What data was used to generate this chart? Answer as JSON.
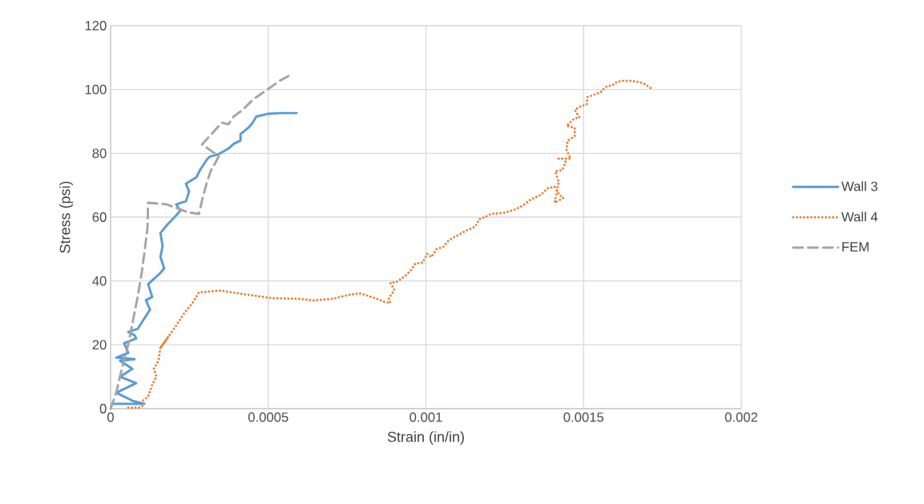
{
  "chart_data": {
    "type": "line",
    "xlabel": "Strain (in/in)",
    "ylabel": "Stress (psi)",
    "xlim": [
      0,
      0.002
    ],
    "ylim": [
      0,
      120
    ],
    "xticks": [
      0,
      0.0005,
      0.001,
      0.0015,
      0.002
    ],
    "yticks": [
      0,
      20,
      40,
      60,
      80,
      100,
      120
    ],
    "grid": true,
    "legend": "right",
    "marker": "none",
    "series": [
      {
        "name": "Wall 3",
        "color": "#5b9bd5",
        "line_style": "solid",
        "x": [
          5e-06,
          0.000107,
          6.9e-05,
          1.8e-05,
          8.1e-05,
          3e-05,
          6.9e-05,
          3e-05,
          7.6e-05,
          1.8e-05,
          5.6e-05,
          4.3e-05,
          8.1e-05,
          7.6e-05,
          5.6e-05,
          8.6e-05,
          0.000102,
          0.000125,
          0.000112,
          0.000132,
          0.000119,
          0.000158,
          0.00017,
          0.000158,
          0.000165,
          0.000158,
          0.000183,
          0.000203,
          0.000221,
          0.000208,
          0.000239,
          0.000249,
          0.000239,
          0.000272,
          0.000285,
          0.000305,
          0.000315,
          0.000335,
          0.000348,
          0.000374,
          0.000391,
          0.000412,
          0.000412,
          0.000437,
          0.00045,
          0.000462,
          0.0005,
          0.000539,
          0.00059
        ],
        "values": [
          1.5,
          1.5,
          2.5,
          5,
          8,
          10,
          12.5,
          15,
          15.5,
          16,
          17.5,
          20.5,
          22,
          23,
          24,
          25,
          27.5,
          31,
          34,
          35,
          39,
          42.5,
          44,
          47.5,
          51,
          55,
          58,
          60,
          62,
          64,
          65,
          68,
          70.5,
          72.5,
          75,
          78,
          79,
          79.5,
          80,
          81.5,
          83,
          84,
          86,
          88,
          89.5,
          91.5,
          92.4,
          92.6,
          92.6
        ]
      },
      {
        "name": "Wall 4",
        "color": "#ed7d31",
        "line_style": "dotted",
        "x": [
          5.6e-05,
          9.4e-05,
          0.000107,
          0.000102,
          0.000119,
          0.000132,
          0.000145,
          0.000137,
          0.000152,
          0.000158,
          0.000183,
          0.000158,
          0.000208,
          0.000234,
          0.000259,
          0.00028,
          0.000348,
          0.000412,
          0.000513,
          0.0006,
          0.000643,
          0.000704,
          0.000745,
          0.000788,
          0.000831,
          0.000869,
          0.000887,
          0.000882,
          0.0009,
          0.000887,
          0.000907,
          0.000933,
          0.000953,
          0.000966,
          0.000989,
          0.001004,
          0.001017,
          0.001034,
          0.001055,
          0.001072,
          0.001088,
          0.001105,
          0.001126,
          0.001156,
          0.001169,
          0.001187,
          0.001207,
          0.001245,
          0.001281,
          0.001306,
          0.001332,
          0.001365,
          0.001385,
          0.001408,
          0.001423,
          0.001436,
          0.001408,
          0.001421,
          0.00141,
          0.001433,
          0.001446,
          0.001415,
          0.001459,
          0.001446,
          0.001449,
          0.001472,
          0.001472,
          0.001446,
          0.001459,
          0.001472,
          0.001487,
          0.001472,
          0.001489,
          0.00151,
          0.001512,
          0.001535,
          0.001555,
          0.00156,
          0.001573,
          0.001593,
          0.001606,
          0.001626,
          0.001649,
          0.00167,
          0.00169,
          0.00172
        ],
        "values": [
          0.3,
          0.3,
          1.3,
          2.5,
          3.8,
          7.5,
          10,
          12.5,
          15,
          19,
          22.5,
          19,
          26,
          30,
          33,
          36.4,
          37,
          36,
          34.6,
          34.4,
          33.9,
          34.4,
          35.4,
          36.2,
          34.9,
          33.4,
          33.1,
          34.6,
          37.2,
          39.4,
          39.7,
          41.4,
          43.4,
          45.4,
          45.7,
          48.5,
          47.5,
          50,
          50.7,
          52.7,
          53.7,
          54.5,
          55.7,
          57,
          59.3,
          60,
          61,
          61.3,
          62.3,
          63.5,
          65.5,
          67,
          69,
          69.5,
          67,
          66,
          64.5,
          71,
          74.3,
          74.8,
          78.3,
          78.3,
          78.3,
          81,
          83.9,
          85.4,
          87.9,
          88.6,
          89.9,
          90.9,
          91.2,
          93.6,
          94.6,
          95.4,
          97.6,
          98.4,
          99.2,
          99.9,
          100.9,
          101.4,
          102.4,
          102.7,
          102.7,
          102.4,
          101.9,
          100
        ]
      },
      {
        "name": "FEM",
        "color": "#a5a5a5",
        "line_style": "dashed",
        "x": [
          0,
          1.8e-05,
          3.6e-05,
          5.6e-05,
          7.1e-05,
          8.6e-05,
          9.9e-05,
          0.000109,
          0.000117,
          0.000119,
          0.000178,
          0.000246,
          0.00028,
          0.000292,
          0.000305,
          0.000318,
          0.00033,
          0.000343,
          0.00029,
          0.000353,
          0.000374,
          0.000391,
          0.000419,
          0.00045,
          0.000493,
          0.000539,
          0.000564
        ],
        "values": [
          0,
          5,
          12.6,
          20.1,
          27.6,
          35.1,
          42.7,
          50.2,
          56.5,
          64.5,
          64,
          61.5,
          61,
          66,
          70.8,
          74.6,
          76.6,
          79.1,
          82.8,
          89.6,
          89.1,
          91.6,
          93.6,
          96.7,
          99.7,
          102.9,
          104.2
        ]
      }
    ]
  }
}
